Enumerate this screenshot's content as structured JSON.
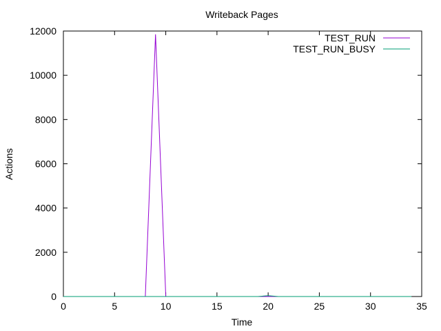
{
  "chart_data": {
    "type": "line",
    "title": "Writeback Pages",
    "xlabel": "Time",
    "ylabel": "Actions",
    "xlim": [
      0,
      35
    ],
    "ylim": [
      0,
      12000
    ],
    "xticks": [
      0,
      5,
      10,
      15,
      20,
      25,
      30,
      35
    ],
    "yticks": [
      0,
      2000,
      4000,
      6000,
      8000,
      10000,
      12000
    ],
    "grid": false,
    "legend_position": "top-right",
    "series": [
      {
        "name": "TEST_RUN",
        "color": "#9400d3",
        "x": [
          0,
          1,
          2,
          3,
          4,
          5,
          6,
          7,
          8,
          9,
          10,
          11,
          12,
          13,
          14,
          15,
          16,
          17,
          18,
          19,
          20,
          21,
          22,
          23,
          24,
          25,
          26,
          27,
          28,
          29,
          30,
          31,
          32,
          33,
          34
        ],
        "y": [
          0,
          0,
          0,
          0,
          0,
          0,
          0,
          0,
          0,
          11850,
          0,
          0,
          0,
          0,
          0,
          0,
          0,
          0,
          0,
          0,
          0,
          0,
          0,
          0,
          0,
          0,
          0,
          0,
          0,
          0,
          0,
          0,
          0,
          0,
          0
        ]
      },
      {
        "name": "TEST_RUN_BUSY",
        "color": "#009e73",
        "x": [
          0,
          1,
          2,
          3,
          4,
          5,
          6,
          7,
          8,
          9,
          10,
          11,
          12,
          13,
          14,
          15,
          16,
          17,
          18,
          19,
          20,
          21,
          22,
          23,
          24,
          25,
          26,
          27,
          28,
          29,
          30,
          31,
          32,
          33,
          34
        ],
        "y": [
          0,
          0,
          0,
          0,
          0,
          0,
          0,
          0,
          0,
          0,
          0,
          0,
          0,
          0,
          0,
          0,
          0,
          0,
          0,
          0,
          40,
          0,
          0,
          0,
          0,
          0,
          0,
          0,
          0,
          0,
          0,
          0,
          0,
          0,
          0
        ]
      }
    ]
  }
}
